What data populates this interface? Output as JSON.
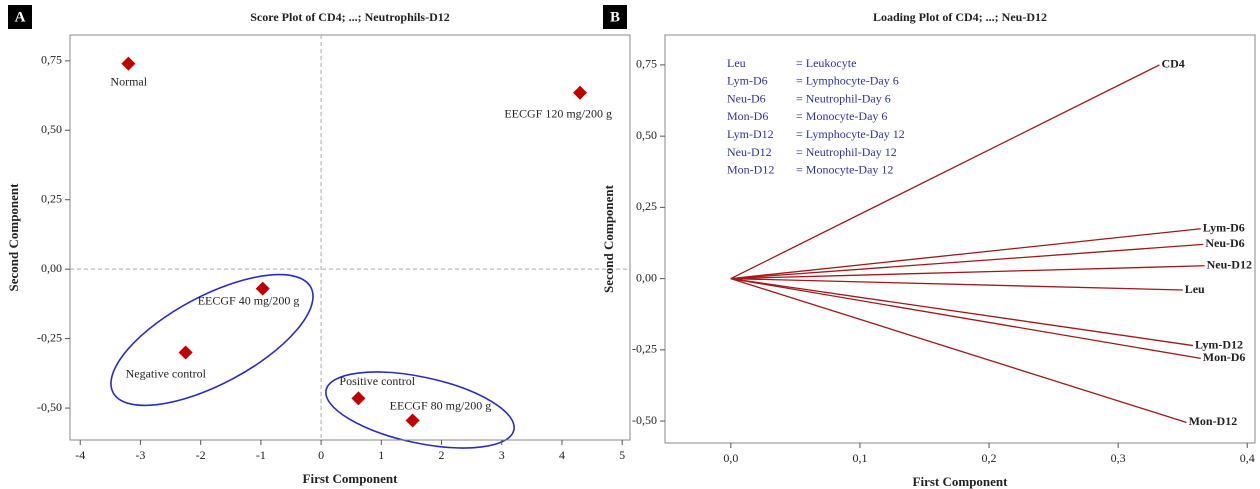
{
  "chart_data": [
    {
      "type": "scatter",
      "panel_label": "A",
      "title": "Score Plot of CD4; ...; Neutrophils-D12",
      "x_label": "First Component",
      "y_label": "Second Component",
      "labels": [
        "Normal",
        "EECGF 120 mg/200 g",
        "EECGF 40 mg/200 g",
        "Negative control",
        "Positive control",
        "EECGF 80 mg/200 g"
      ],
      "x": [
        -3.2,
        4.3,
        -0.97,
        -2.25,
        0.62,
        1.52
      ],
      "values": [
        0.74,
        0.635,
        -0.07,
        -0.3,
        -0.465,
        -0.545
      ],
      "color": "#c00000",
      "xlim": [
        -4.17,
        5.13
      ],
      "ylim": [
        -0.615,
        0.843
      ],
      "xticks": [
        -4,
        -3,
        -2,
        -1,
        0,
        1,
        2,
        3,
        4,
        5
      ],
      "yticks": [
        {
          "value": -0.5,
          "label": "-0,50"
        },
        {
          "value": -0.25,
          "label": "-0,25"
        },
        {
          "value": 0,
          "label": "0,00"
        },
        {
          "value": 0.25,
          "label": "0,25"
        },
        {
          "value": 0.5,
          "label": "0,50"
        },
        {
          "value": 0.75,
          "label": "0,75"
        }
      ]
    },
    {
      "type": "loading",
      "panel_label": "B",
      "title": "Loading Plot of CD4; ...; Neu-D12",
      "x_label": "First Component",
      "y_label": "Second Component",
      "labels": [
        "CD4",
        "Lym-D6",
        "Neu-D6",
        "Neu-D12",
        "Leu",
        "Lym-D12",
        "Mon-D6",
        "Mon-D12"
      ],
      "x": [
        0.332,
        0.364,
        0.366,
        0.367,
        0.35,
        0.358,
        0.364,
        0.353
      ],
      "values": [
        0.75,
        0.175,
        0.12,
        0.045,
        -0.04,
        -0.235,
        -0.28,
        -0.505
      ],
      "color": "#a01818",
      "xlim": [
        -0.051,
        0.406
      ],
      "ylim": [
        -0.577,
        0.855
      ],
      "xticks": [
        {
          "value": 0,
          "label": "0,0"
        },
        {
          "value": 0.1,
          "label": "0,1"
        },
        {
          "value": 0.2,
          "label": "0,2"
        },
        {
          "value": 0.3,
          "label": "0,3"
        },
        {
          "value": 0.4,
          "label": "0,4"
        }
      ],
      "yticks": [
        {
          "value": -0.5,
          "label": "-0,50"
        },
        {
          "value": -0.25,
          "label": "-0,25"
        },
        {
          "value": 0,
          "label": "0,00"
        },
        {
          "value": 0.25,
          "label": "0,25"
        },
        {
          "value": 0.5,
          "label": "0,50"
        },
        {
          "value": 0.75,
          "label": "0,75"
        }
      ],
      "notes": [
        {
          "abbr": "Leu",
          "meaning": "= Leukocyte"
        },
        {
          "abbr": "Lym-D6",
          "meaning": "= Lymphocyte-Day 6"
        },
        {
          "abbr": "Neu-D6",
          "meaning": "= Neutrophil-Day 6"
        },
        {
          "abbr": "Mon-D6",
          "meaning": "= Monocyte-Day 6"
        },
        {
          "abbr": "Lym-D12",
          "meaning": "= Lymphocyte-Day 12"
        },
        {
          "abbr": "Neu-D12",
          "meaning": "= Neutrophil-Day 12"
        },
        {
          "abbr": "Mon-D12",
          "meaning": "= Monocyte-Day 12"
        }
      ]
    }
  ]
}
